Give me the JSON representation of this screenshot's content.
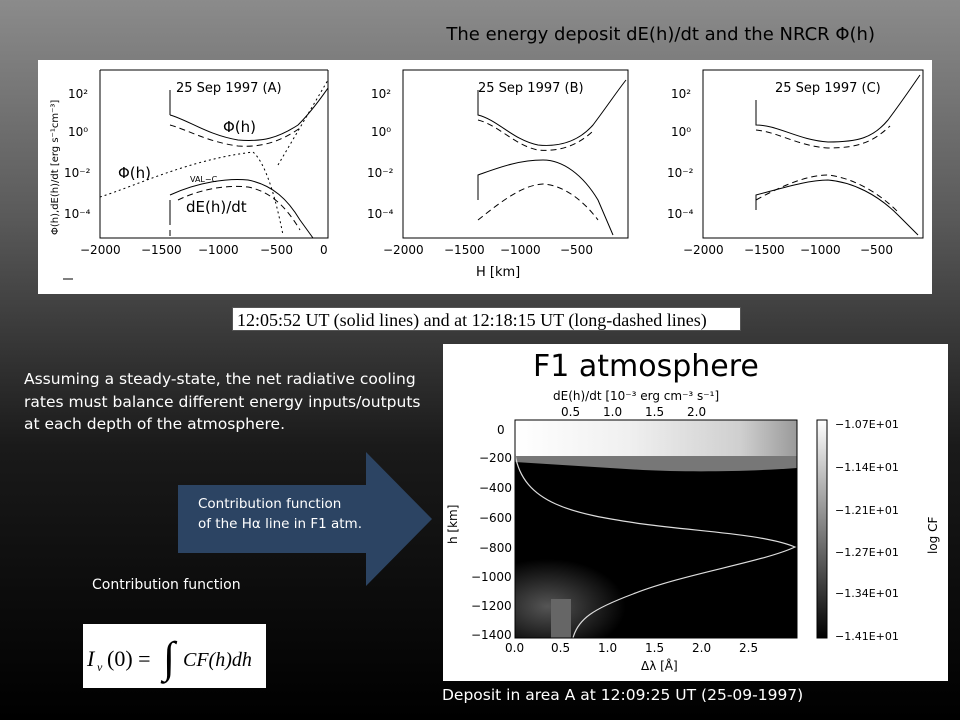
{
  "slide": {
    "title": "The energy deposit dE(h)/dt and the NRCR Φ(h)",
    "caption": "12:05:52 UT (solid lines) and at 12:18:15 UT (long-dashed lines)",
    "body_text": "Assuming a steady-state, the net radiative cooling rates must balance different energy inputs/outputs at each depth of the atmosphere.",
    "arrow_text_line1": "Contribution function",
    "arrow_text_line2": "of the Hα line in F1 atm.",
    "cf_label": "Contribution function",
    "deposit_caption": "Deposit in area A at 12:09:25 UT (25-09-1997)"
  },
  "top_figure": {
    "ylabel": "Φ(h),dE(h)/dt [erg s⁻¹cm⁻³]",
    "xlabel": "H [km]",
    "x_ticks": [
      "−2000",
      "−1500",
      "−1000",
      "−500",
      "0"
    ],
    "y_ticks": [
      "10²",
      "10⁰",
      "10⁻²",
      "10⁻⁴"
    ],
    "panels": [
      {
        "title": "25 Sep 1997 (A)",
        "labels": [
          "Φ(h)",
          "Φ(h)",
          "VAL−C",
          "dE(h)/dt"
        ]
      },
      {
        "title": "25 Sep 1997 (B)",
        "labels": []
      },
      {
        "title": "25 Sep 1997 (C)",
        "labels": []
      }
    ]
  },
  "formula": {
    "lhs": "I",
    "lhs_sub": "ν",
    "lhs_arg": "(0) =",
    "integrand": "CF(h)dh"
  },
  "cf_figure": {
    "title": "F1 atmosphere",
    "top_axis_label": "dE(h)/dt [10⁻³ erg cm⁻³ s⁻¹]",
    "top_ticks": [
      "0.5",
      "1.0",
      "1.5",
      "2.0"
    ],
    "ylabel": "h [km]",
    "y_ticks": [
      "0",
      "−200",
      "−400",
      "−600",
      "−800",
      "−1000",
      "−1200",
      "−1400"
    ],
    "xlabel": "Δλ [Å]",
    "x_ticks": [
      "0.0",
      "0.5",
      "1.0",
      "1.5",
      "2.0",
      "2.5"
    ],
    "colorbar_label": "log CF",
    "colorbar_ticks": [
      "−1.07E+01",
      "−1.14E+01",
      "−1.21E+01",
      "−1.27E+01",
      "−1.34E+01",
      "−1.41E+01"
    ]
  }
}
